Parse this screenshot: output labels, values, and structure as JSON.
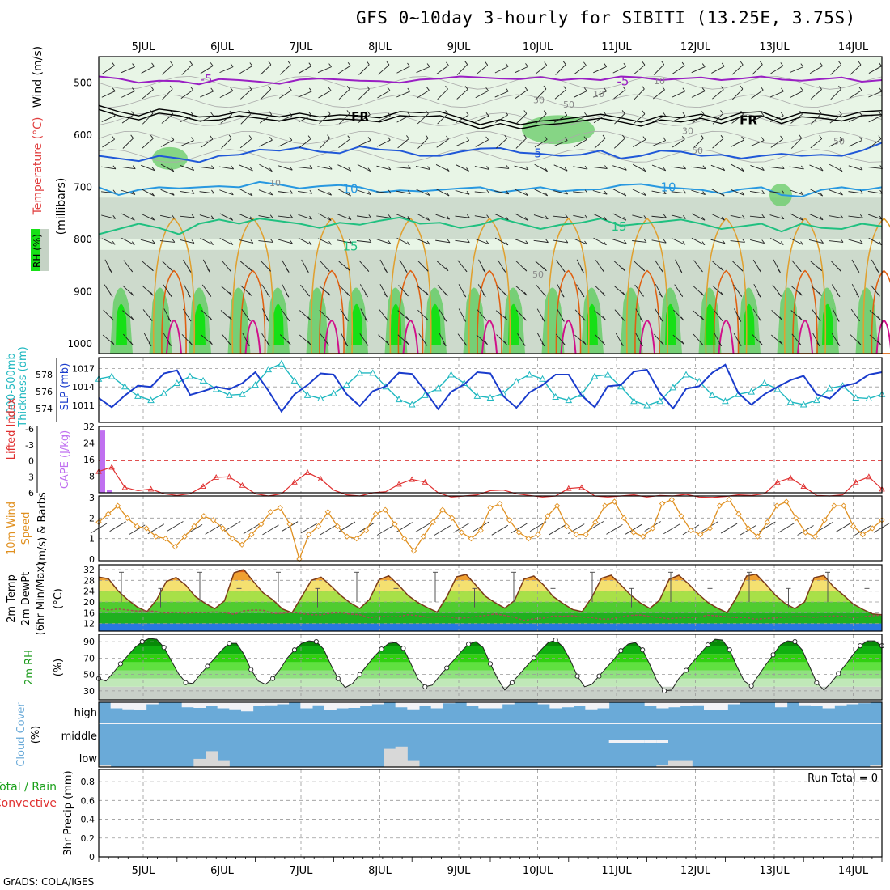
{
  "header": {
    "title": "GFS 0~10day 3-hourly for SIBITI (13.25E, 3.75S)",
    "credit": "GrADS: COLA/IGES"
  },
  "colors": {
    "rh_light": "#e8f5e6",
    "rh_mid": "#c5d3c5",
    "rh_dark": "#6dcd6d",
    "rh_bright": "#16e016",
    "temp_m5": "#9a1fc4",
    "temp_fr": "#000000",
    "temp_5": "#2058d8",
    "temp_10": "#2898e0",
    "temp_15": "#20c080",
    "temp_20": "#e09a20",
    "temp_25": "#e06010",
    "temp_30": "#d0108a",
    "slp": "#1a3ccc",
    "thickness": "#20b8c0",
    "cape": "#c070f0",
    "lifted": "#e03030",
    "wind": "#e09020",
    "dewpoint": "#a05050",
    "cloud": "#6aaad8",
    "cloud_clear": "#f2f2f6"
  },
  "chart_data": [
    {
      "panel": "upper-air",
      "type": "heatmap",
      "xlabels": [
        "5JUL",
        "6JUL",
        "7JUL",
        "8JUL",
        "9JUL",
        "10JUL",
        "11JUL",
        "12JUL",
        "13JUL",
        "14JUL"
      ],
      "ylabel_parts": [
        "RH (%)",
        "Temperature (°C)",
        "Wind (m/s)",
        "(millibars)"
      ],
      "yticks": [
        500,
        600,
        700,
        800,
        900,
        1000
      ],
      "ylim": [
        1000,
        450
      ],
      "contour_labels": {
        "t_m5": "-5",
        "t_fr": "FR",
        "t_5": "5",
        "t_10": "10",
        "t_15": "15",
        "rh10": "10",
        "rh30": "30",
        "rh50": "50"
      },
      "isotherms": [
        {
          "name": "-5",
          "levels": [
            488,
            492,
            500,
            496,
            497,
            503,
            493,
            495,
            498,
            502,
            494,
            492,
            494,
            496,
            497,
            500,
            494,
            492,
            488,
            490,
            492,
            493,
            489,
            495,
            492,
            495,
            488,
            490,
            495,
            492,
            490,
            495,
            492,
            488,
            494,
            496,
            493,
            490,
            498,
            495
          ]
        },
        {
          "name": "FR",
          "levels": [
            548,
            560,
            568,
            555,
            560,
            570,
            568,
            560,
            565,
            570,
            563,
            570,
            566,
            568,
            572,
            560,
            562,
            560,
            572,
            585,
            575,
            585,
            578,
            575,
            570,
            565,
            572,
            580,
            568,
            572,
            565,
            575,
            562,
            560,
            575,
            562,
            565,
            570,
            560,
            558
          ]
        },
        {
          "name": "5",
          "levels": [
            640,
            645,
            650,
            640,
            645,
            652,
            640,
            638,
            628,
            630,
            624,
            632,
            635,
            622,
            628,
            630,
            640,
            640,
            632,
            626,
            625,
            634,
            636,
            640,
            638,
            630,
            645,
            640,
            630,
            632,
            640,
            638,
            645,
            640,
            636,
            640,
            638,
            640,
            630,
            615
          ]
        },
        {
          "name": "10",
          "levels": [
            700,
            715,
            705,
            700,
            702,
            700,
            698,
            700,
            690,
            695,
            702,
            698,
            696,
            700,
            710,
            706,
            708,
            705,
            702,
            700,
            710,
            705,
            700,
            708,
            705,
            704,
            696,
            694,
            700,
            702,
            705,
            712,
            704,
            700,
            715,
            718,
            705,
            700,
            706,
            700
          ]
        },
        {
          "name": "15",
          "levels": [
            790,
            780,
            770,
            778,
            790,
            770,
            762,
            770,
            760,
            765,
            770,
            778,
            768,
            772,
            764,
            758,
            770,
            768,
            778,
            772,
            760,
            770,
            780,
            772,
            768,
            760,
            774,
            770,
            766,
            762,
            770,
            780,
            775,
            770,
            785,
            770,
            778,
            780,
            770,
            775
          ]
        }
      ]
    },
    {
      "panel": "slp-thickness",
      "type": "line",
      "ylabel_left": "1000-500mb Thickness (dm)",
      "ylabel_right": "SLP (mb)",
      "yticks_left": [
        574,
        576,
        578
      ],
      "yticks_right": [
        1011,
        1014,
        1017
      ],
      "series": [
        {
          "name": "SLP (mb)",
          "values": [
            1012.2,
            1010.7,
            1012.6,
            1014.2,
            1014.0,
            1016.2,
            1016.7,
            1012.7,
            1013.3,
            1014.0,
            1013.6,
            1014.6,
            1016.4,
            1013.4,
            1010.0,
            1012.8,
            1014.3,
            1016.2,
            1016.0,
            1012.8,
            1010.9,
            1013.3,
            1014.1,
            1016.3,
            1016.1,
            1013.4,
            1010.4,
            1013.2,
            1014.4,
            1016.4,
            1016.2,
            1012.5,
            1010.6,
            1013.1,
            1014.3,
            1016.0,
            1016.0,
            1012.6,
            1010.7,
            1014.1,
            1014.3,
            1016.5,
            1016.8,
            1013.0,
            1010.5,
            1013.7,
            1014.1,
            1016.3,
            1017.6,
            1013.0,
            1011.1,
            1012.8,
            1014.0,
            1015.1,
            1015.8,
            1012.8,
            1012.1,
            1014.1,
            1014.6,
            1016.0,
            1016.4
          ]
        },
        {
          "name": "1000-500mb Thickness (dm)",
          "values": [
            577.5,
            577.8,
            576.6,
            575.5,
            575.0,
            575.8,
            577.0,
            577.8,
            577.3,
            576.3,
            575.6,
            575.7,
            576.8,
            578.6,
            579.3,
            577.3,
            575.6,
            575.2,
            575.8,
            576.8,
            578.2,
            578.2,
            576.6,
            575.1,
            574.5,
            575.6,
            576.4,
            578.0,
            577.0,
            575.5,
            575.3,
            575.8,
            577.2,
            578.0,
            577.5,
            575.4,
            575.0,
            575.7,
            577.8,
            578.0,
            576.6,
            574.9,
            574.4,
            574.9,
            576.5,
            578.0,
            577.2,
            575.6,
            574.9,
            575.7,
            576.0,
            577.0,
            576.3,
            574.8,
            574.5,
            575.0,
            576.4,
            576.7,
            575.3,
            575.2,
            575.7
          ]
        }
      ]
    },
    {
      "panel": "li-cape",
      "type": "line",
      "ylabel_left": "Lifted Index",
      "ylabel_right": "CAPE (J/kg)",
      "yticks_left": [
        "6",
        "3",
        "0",
        "-3",
        "-6"
      ],
      "yticks_right": [
        8,
        16,
        24,
        32
      ],
      "cape_bars": [
        {
          "step": 0,
          "value": 30
        },
        {
          "step": 1,
          "value": 1.5
        }
      ],
      "lifted_index": [
        2,
        1.2,
        5,
        5.6,
        5.3,
        6.2,
        6.5,
        6.2,
        4.8,
        3.1,
        3.0,
        4.6,
        6.2,
        6.6,
        6.2,
        4.0,
        2.2,
        3.4,
        5.5,
        6.4,
        6.6,
        6.0,
        5.8,
        4.4,
        3.5,
        4.0,
        6.0,
        6.8,
        6.6,
        6.4,
        5.6,
        5.5,
        6.2,
        6.5,
        6.8,
        6.6,
        5.2,
        5.0,
        6.6,
        6.8,
        6.6,
        6.4,
        6.8,
        6.5,
        6.6,
        6.3,
        6.8,
        6.9,
        6.7,
        6.4,
        6.5,
        6.2,
        4.0,
        3.2,
        4.8,
        6.5,
        6.6,
        6.4,
        4.0,
        3.0,
        5.3
      ]
    },
    {
      "panel": "wind-10m",
      "type": "line",
      "ylabel": "10m Wind Speed (m/s) & Barbs",
      "yticks": [
        0,
        1,
        2,
        3
      ],
      "series": [
        {
          "name": "Speed",
          "values": [
            1.8,
            2.2,
            2.6,
            2.0,
            1.6,
            1.5,
            1.1,
            1.0,
            0.6,
            1.1,
            1.6,
            2.1,
            1.9,
            1.5,
            1.0,
            0.7,
            1.2,
            1.7,
            2.3,
            2.5,
            1.7,
            0.0,
            1.2,
            1.6,
            2.3,
            1.6,
            1.1,
            1.0,
            1.4,
            2.2,
            2.4,
            1.7,
            1.0,
            0.4,
            1.1,
            1.8,
            2.4,
            2.0,
            1.3,
            1.0,
            1.4,
            2.5,
            2.7,
            1.9,
            1.3,
            1.0,
            1.2,
            2.1,
            2.6,
            1.6,
            1.2,
            1.2,
            1.8,
            2.6,
            2.8,
            2.0,
            1.3,
            1.1,
            1.5,
            2.7,
            2.9,
            2.1,
            1.4,
            1.2,
            1.5,
            2.6,
            2.9,
            2.2,
            1.5,
            1.1,
            1.8,
            2.6,
            2.8,
            2.0,
            1.3,
            1.1,
            1.9,
            2.6,
            2.6,
            1.6,
            1.2,
            1.5,
            1.9
          ]
        }
      ]
    },
    {
      "panel": "temp-2m",
      "type": "area",
      "ylabel": "2m Temp 2m DewPt (6hr Min/Max) (°C)",
      "yticks": [
        12,
        16,
        20,
        24,
        28,
        32
      ],
      "series": [
        {
          "name": "2m Temp",
          "values": [
            29.2,
            28.6,
            24.1,
            20.8,
            18.1,
            16.4,
            20.9,
            27.6,
            29.1,
            26.2,
            22.0,
            19.5,
            17.5,
            20.4,
            30.8,
            32.0,
            27.6,
            23.4,
            20.8,
            17.4,
            16.0,
            22.0,
            28.0,
            29.2,
            26.0,
            22.5,
            19.7,
            17.6,
            20.9,
            28.3,
            29.7,
            26.3,
            22.4,
            19.8,
            17.9,
            16.2,
            21.9,
            29.3,
            30.2,
            26.2,
            22.1,
            19.7,
            17.7,
            20.5,
            28.5,
            29.6,
            26.3,
            22.0,
            19.5,
            17.2,
            16.4,
            21.7,
            28.8,
            29.9,
            26.3,
            22.6,
            19.7,
            17.6,
            20.6,
            28.4,
            29.9,
            26.7,
            23.0,
            19.8,
            17.7,
            16.0,
            21.9,
            29.6,
            30.3,
            26.5,
            22.5,
            19.4,
            17.5,
            20.0,
            29.0,
            29.8,
            25.6,
            22.6,
            19.3,
            17.3,
            15.6,
            15.3
          ]
        },
        {
          "name": "2m DewPt",
          "values": [
            17.6,
            17.0,
            17.4,
            17.0,
            16.6,
            16.8,
            16.4,
            15.8,
            16.2,
            15.8,
            16.0,
            16.1,
            16.3,
            16.1,
            15.4,
            16.7,
            17.0,
            16.9,
            15.7,
            15.8,
            16.2,
            15.7,
            15.3,
            15.3,
            15.8,
            16.0,
            15.5,
            15.3,
            14.1,
            14.7,
            14.5,
            14.5,
            15.3,
            14.9,
            14.4,
            14.5,
            14.6,
            14.0,
            14.1,
            14.6,
            15.0,
            15.6,
            15.0,
            14.3,
            13.1,
            13.8,
            14.0,
            14.8,
            14.7,
            14.9,
            14.4,
            14.2,
            13.6,
            13.7,
            14.5,
            15.0,
            15.2,
            14.6,
            14.2,
            13.8,
            14.1,
            14.2,
            14.3,
            15.1,
            14.8,
            14.5,
            14.2,
            14.2,
            13.6,
            13.9,
            14.1,
            14.4,
            14.5,
            14.6,
            14.3,
            14.6,
            14.8,
            14.7,
            14.2,
            14.5,
            14.9,
            15.1
          ]
        }
      ]
    },
    {
      "panel": "rh-2m",
      "type": "area",
      "ylabel": "2m RH (%)",
      "yticks": [
        30,
        50,
        70,
        90
      ],
      "values": [
        45,
        42,
        52,
        63,
        73,
        83,
        90,
        94,
        93,
        83,
        67,
        51,
        40,
        39,
        50,
        60,
        70,
        80,
        88,
        88,
        75,
        56,
        42,
        38,
        45,
        56,
        70,
        80,
        88,
        91,
        90,
        81,
        62,
        45,
        34,
        39,
        50,
        61,
        72,
        81,
        88,
        89,
        82,
        64,
        45,
        35,
        37,
        48,
        58,
        68,
        78,
        87,
        90,
        83,
        63,
        45,
        31,
        40,
        50,
        60,
        70,
        80,
        89,
        92,
        84,
        68,
        48,
        35,
        38,
        48,
        58,
        68,
        79,
        87,
        89,
        80,
        62,
        42,
        30,
        31,
        45,
        55,
        66,
        76,
        86,
        93,
        92,
        80,
        60,
        42,
        36,
        49,
        62,
        74,
        86,
        91,
        90,
        80,
        60,
        40,
        31,
        40,
        51,
        62,
        74,
        85,
        91,
        91,
        85
      ]
    },
    {
      "panel": "cloud-cover",
      "type": "bar",
      "ylabel": "Cloud Cover (%)",
      "levels": [
        "high",
        "middle",
        "low"
      ],
      "high": [
        100,
        70,
        65,
        60,
        90,
        100,
        100,
        75,
        72,
        80,
        70,
        65,
        55,
        80,
        85,
        90,
        100,
        70,
        85,
        60,
        70,
        72,
        80,
        90,
        100,
        75,
        65,
        80,
        70,
        95,
        100,
        80,
        70,
        70,
        90,
        100,
        100,
        90,
        70,
        75,
        80,
        65,
        70,
        100,
        100,
        100,
        80,
        70,
        75,
        80,
        85,
        60,
        60,
        90,
        100,
        100,
        100,
        75,
        100,
        85,
        80,
        70,
        85,
        90,
        95,
        100
      ],
      "middle": [
        0,
        0,
        0,
        0,
        0,
        0,
        0,
        0,
        0,
        0,
        0,
        0,
        0,
        0,
        0,
        0,
        0,
        0,
        0,
        0,
        0,
        0,
        0,
        0,
        0,
        0,
        0,
        0,
        0,
        0,
        0,
        0,
        0,
        0,
        0,
        0,
        0,
        0,
        0,
        0,
        0,
        0,
        0,
        5,
        5,
        5,
        5,
        5,
        0,
        0,
        0,
        0,
        0,
        0,
        0,
        0,
        0,
        0,
        0,
        0,
        0,
        0,
        0,
        0,
        0,
        0
      ],
      "low": [
        5,
        0,
        0,
        0,
        0,
        0,
        0,
        0,
        18,
        35,
        15,
        0,
        0,
        0,
        0,
        0,
        0,
        0,
        0,
        0,
        0,
        0,
        0,
        0,
        40,
        45,
        15,
        0,
        0,
        0,
        0,
        0,
        0,
        0,
        0,
        0,
        0,
        0,
        0,
        0,
        0,
        0,
        0,
        0,
        0,
        0,
        0,
        5,
        15,
        15,
        0,
        0,
        0,
        0,
        0,
        0,
        0,
        0,
        0,
        0,
        0,
        0,
        0,
        0,
        0,
        5
      ]
    },
    {
      "panel": "precip-3hr",
      "type": "bar",
      "ylabel_parts": [
        "Total / Rain",
        "Convective",
        "3hr Precip (mm)"
      ],
      "yticks": [
        "0",
        "0.2",
        "0.4",
        "0.6",
        "0.8"
      ],
      "values": [],
      "annotation": "Run Total = 0"
    }
  ]
}
